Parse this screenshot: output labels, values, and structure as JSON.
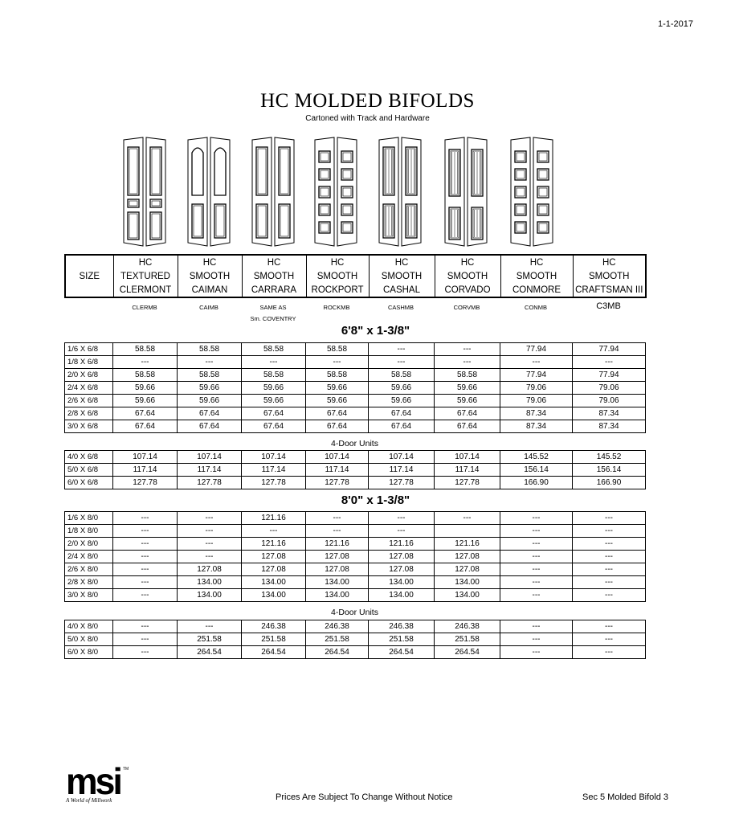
{
  "date": "1-1-2017",
  "title": "HC MOLDED BIFOLDS",
  "subtitle": "Cartoned with Track and Hardware",
  "door_images": [
    "clermont-door-icon",
    "caiman-door-icon",
    "carrara-door-icon",
    "rockport-door-icon",
    "cashal-door-icon",
    "corvado-door-icon",
    "conmore-door-icon"
  ],
  "header": {
    "size_label": "SIZE",
    "columns": [
      [
        "HC",
        "TEXTURED",
        "CLERMONT"
      ],
      [
        "HC",
        "SMOOTH",
        "CAIMAN"
      ],
      [
        "HC",
        "SMOOTH",
        "CARRARA"
      ],
      [
        "HC",
        "SMOOTH",
        "ROCKPORT"
      ],
      [
        "HC",
        "SMOOTH",
        "CASHAL"
      ],
      [
        "HC",
        "SMOOTH",
        "CORVADO"
      ],
      [
        "HC",
        "SMOOTH",
        "CONMORE"
      ],
      [
        "HC",
        "SMOOTH",
        "CRAFTSMAN III"
      ]
    ],
    "codes": [
      "CLERMB",
      "CAIMB",
      "SAME AS",
      "ROCKMB",
      "CASHMB",
      "CORVMB",
      "CONMB",
      "C3MB"
    ],
    "code_note": "Sm. COVENTRY"
  },
  "sections": [
    {
      "heading": "6'8\" x 1-3/8\"",
      "rows": [
        [
          "1/6 X 6/8",
          "58.58",
          "58.58",
          "58.58",
          "58.58",
          "---",
          "---",
          "77.94",
          "77.94"
        ],
        [
          "1/8 X 6/8",
          "---",
          "---",
          "---",
          "---",
          "---",
          "---",
          "---",
          "---"
        ],
        [
          "2/0 X 6/8",
          "58.58",
          "58.58",
          "58.58",
          "58.58",
          "58.58",
          "58.58",
          "77.94",
          "77.94"
        ],
        [
          "2/4 X 6/8",
          "59.66",
          "59.66",
          "59.66",
          "59.66",
          "59.66",
          "59.66",
          "79.06",
          "79.06"
        ],
        [
          "2/6 X 6/8",
          "59.66",
          "59.66",
          "59.66",
          "59.66",
          "59.66",
          "59.66",
          "79.06",
          "79.06"
        ],
        [
          "2/8 X 6/8",
          "67.64",
          "67.64",
          "67.64",
          "67.64",
          "67.64",
          "67.64",
          "87.34",
          "87.34"
        ],
        [
          "3/0 X 6/8",
          "67.64",
          "67.64",
          "67.64",
          "67.64",
          "67.64",
          "67.64",
          "87.34",
          "87.34"
        ]
      ],
      "units_label": "4-Door Units",
      "unit_rows": [
        [
          "4/0 X 6/8",
          "107.14",
          "107.14",
          "107.14",
          "107.14",
          "107.14",
          "107.14",
          "145.52",
          "145.52"
        ],
        [
          "5/0 X 6/8",
          "117.14",
          "117.14",
          "117.14",
          "117.14",
          "117.14",
          "117.14",
          "156.14",
          "156.14"
        ],
        [
          "6/0 X 6/8",
          "127.78",
          "127.78",
          "127.78",
          "127.78",
          "127.78",
          "127.78",
          "166.90",
          "166.90"
        ]
      ]
    },
    {
      "heading": "8'0\" x 1-3/8\"",
      "rows": [
        [
          "1/6 X 8/0",
          "---",
          "---",
          "121.16",
          "---",
          "---",
          "---",
          "---",
          "---"
        ],
        [
          "1/8 X 8/0",
          "---",
          "---",
          "---",
          "---",
          "---",
          "",
          "---",
          "---"
        ],
        [
          "2/0 X 8/0",
          "---",
          "---",
          "121.16",
          "121.16",
          "121.16",
          "121.16",
          "---",
          "---"
        ],
        [
          "2/4 X 8/0",
          "---",
          "---",
          "127.08",
          "127.08",
          "127.08",
          "127.08",
          "---",
          "---"
        ],
        [
          "2/6 X 8/0",
          "---",
          "127.08",
          "127.08",
          "127.08",
          "127.08",
          "127.08",
          "---",
          "---"
        ],
        [
          "2/8 X 8/0",
          "---",
          "134.00",
          "134.00",
          "134.00",
          "134.00",
          "134.00",
          "---",
          "---"
        ],
        [
          "3/0 X 8/0",
          "---",
          "134.00",
          "134.00",
          "134.00",
          "134.00",
          "134.00",
          "---",
          "---"
        ]
      ],
      "units_label": "4-Door Units",
      "unit_rows": [
        [
          "4/0 X 8/0",
          "---",
          "---",
          "246.38",
          "246.38",
          "246.38",
          "246.38",
          "---",
          "---"
        ],
        [
          "5/0 X 8/0",
          "---",
          "251.58",
          "251.58",
          "251.58",
          "251.58",
          "251.58",
          "---",
          "---"
        ],
        [
          "6/0 X 8/0",
          "---",
          "264.54",
          "264.54",
          "264.54",
          "264.54",
          "264.54",
          "---",
          "---"
        ]
      ]
    }
  ],
  "footer": {
    "logo": "msi",
    "logo_tagline": "A World of Millwork",
    "note": "Prices Are Subject To Change Without Notice",
    "page": "Sec 5 Molded Bifold 3"
  }
}
